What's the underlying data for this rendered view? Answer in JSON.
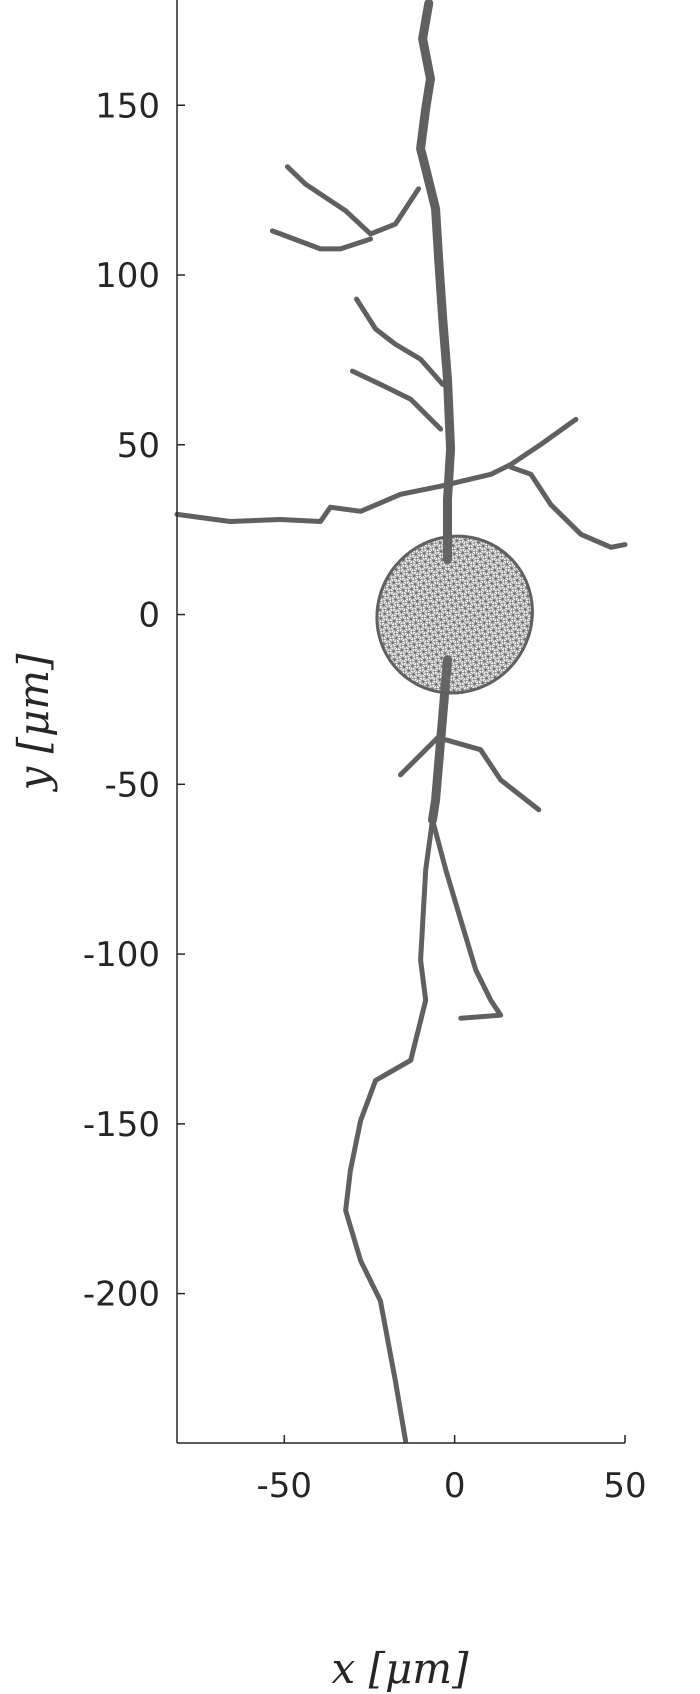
{
  "chart_data": {
    "type": "line",
    "title": "",
    "xlabel": "x [μm]",
    "ylabel": "y [μm]",
    "xlim": [
      -81.5,
      50
    ],
    "ylim": [
      -244,
      181
    ],
    "xticks": [
      -50,
      0,
      50
    ],
    "xtick_labels": [
      "-50",
      "0",
      "50"
    ],
    "yticks": [
      -200,
      -150,
      -100,
      -50,
      0,
      50,
      100,
      150
    ],
    "ytick_labels": [
      "-200",
      "-150",
      "-100",
      "-50",
      "0",
      "50",
      "100",
      "150"
    ],
    "grid": false,
    "color": "#606060",
    "soma": {
      "center": [
        0,
        0
      ],
      "semi_axes": [
        22.5,
        10
      ],
      "angle_deg": -38
    },
    "branches": [
      {
        "points": [
          [
            -2.1,
            16.2
          ],
          [
            -2.1,
            33.9
          ],
          [
            -1.2,
            48.7
          ],
          [
            -2.1,
            69.3
          ],
          [
            -3.5,
            87.0
          ],
          [
            -4.7,
            104.7
          ],
          [
            -5.6,
            119.5
          ],
          [
            -8.5,
            131.3
          ],
          [
            -10,
            137.2
          ],
          [
            -8.5,
            149
          ],
          [
            -7.1,
            157.8
          ],
          [
            -9.4,
            169.6
          ],
          [
            -7.6,
            180
          ]
        ]
      },
      {
        "points": [
          [
            -10.6,
            125.4
          ],
          [
            -17.4,
            115
          ],
          [
            -24.7,
            112.1
          ],
          [
            -32,
            118.9
          ],
          [
            -43.8,
            126.8
          ],
          [
            -49.1,
            131.9
          ]
        ]
      },
      {
        "points": [
          [
            -24.7,
            110.6
          ],
          [
            -33.5,
            107.7
          ],
          [
            -39.4,
            107.7
          ],
          [
            -53.5,
            113
          ]
        ]
      },
      {
        "points": [
          [
            -3.5,
            67.8
          ],
          [
            -10,
            75.2
          ],
          [
            -17.4,
            79.6
          ],
          [
            -23.2,
            84.1
          ],
          [
            -28.8,
            92.9
          ]
        ]
      },
      {
        "points": [
          [
            -4.1,
            54.6
          ],
          [
            -12.9,
            63.4
          ],
          [
            -21.8,
            67.8
          ],
          [
            -30,
            71.7
          ]
        ]
      },
      {
        "points": [
          [
            -81.5,
            29.5
          ],
          [
            -65.9,
            27.4
          ],
          [
            -51.2,
            28
          ],
          [
            -39.4,
            27.4
          ],
          [
            -36.5,
            31.6
          ],
          [
            -27.6,
            30.4
          ],
          [
            -15.9,
            35.4
          ],
          [
            -4.1,
            37.8
          ]
        ]
      },
      {
        "points": [
          [
            -4.1,
            37.8
          ],
          [
            10.6,
            41.3
          ],
          [
            16.5,
            44.2
          ],
          [
            25.3,
            50.1
          ],
          [
            35.6,
            57.5
          ]
        ]
      },
      {
        "points": [
          [
            16.5,
            43.4
          ],
          [
            22.4,
            41.3
          ],
          [
            28.2,
            32.4
          ],
          [
            37.1,
            23.6
          ],
          [
            45.9,
            19.8
          ],
          [
            50,
            20.6
          ]
        ]
      },
      {
        "points": [
          [
            -2.1,
            -13.3
          ],
          [
            -4.1,
            -36.9
          ],
          [
            -5.6,
            -54.6
          ],
          [
            -6.5,
            -60.5
          ]
        ]
      },
      {
        "points": [
          [
            -6.5,
            -60.5
          ],
          [
            -8.5,
            -75.2
          ],
          [
            -10,
            -101.8
          ],
          [
            -8.5,
            -113.6
          ],
          [
            -12.9,
            -131.3
          ],
          [
            -23.2,
            -137.2
          ],
          [
            -27.6,
            -149
          ],
          [
            -30.6,
            -163.7
          ],
          [
            -32,
            -175.5
          ],
          [
            -27.6,
            -190.3
          ],
          [
            -21.8,
            -202.1
          ],
          [
            -17.4,
            -225.7
          ],
          [
            -14.4,
            -243.4
          ]
        ]
      },
      {
        "points": [
          [
            -6.5,
            -60.5
          ],
          [
            -2.6,
            -75.2
          ],
          [
            1.8,
            -90
          ],
          [
            6.2,
            -104.7
          ],
          [
            10.6,
            -113.6
          ],
          [
            13.5,
            -118
          ],
          [
            1.8,
            -118.9
          ]
        ]
      },
      {
        "points": [
          [
            -15.9,
            -47.2
          ],
          [
            -4.1,
            -35.4
          ]
        ]
      },
      {
        "points": [
          [
            -2.6,
            -36.9
          ],
          [
            7.6,
            -39.8
          ],
          [
            13.5,
            -48.7
          ],
          [
            24.7,
            -57.5
          ]
        ]
      }
    ]
  }
}
